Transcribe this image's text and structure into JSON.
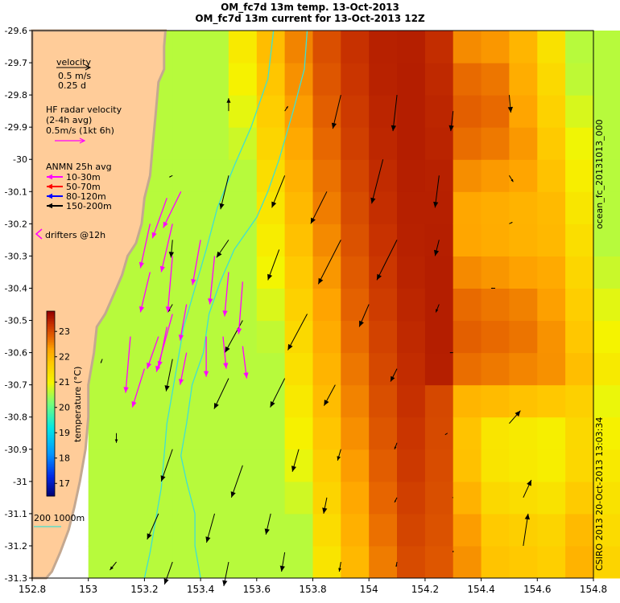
{
  "title_line1": "OM_fc7d 13m temp. 13-Oct-2013",
  "title_line2": "OM_fc7d 13m current for 13-Oct-2013 12Z",
  "right_label_top": "ocean_fc_20131013_000",
  "right_label_bottom": "CSIRO 2013  20-Oct-2013 13:03:34",
  "legend": {
    "velocity_label": "velocity",
    "velocity_scale": "0.5 m/s",
    "velocity_time": "0.25 d",
    "hf_title": "HF radar velocity",
    "hf_avg": "(2-4h avg)",
    "hf_scale": "0.5m/s (1kt 6h)",
    "anmn_title": "ANMN 25h avg",
    "anmn_items": [
      {
        "label": "10-30m",
        "color": "#ff00ff"
      },
      {
        "label": "50-70m",
        "color": "#ff0000"
      },
      {
        "label": "80-120m",
        "color": "#0000ff"
      },
      {
        "label": "150-200m",
        "color": "#000000"
      }
    ],
    "drifters_label": "drifters @12h",
    "bathy_label": "200  1000m"
  },
  "colorbar": {
    "label": "temperature (°C)",
    "ticks": [
      "23",
      "22",
      "21",
      "20",
      "19",
      "18",
      "17"
    ],
    "tick_values": [
      23,
      22,
      21,
      20,
      19,
      18,
      17
    ],
    "vmin": 16.5,
    "vmax": 23.8
  },
  "axes": {
    "x_ticks": [
      "152.8",
      "153",
      "153.2",
      "153.4",
      "153.6",
      "153.8",
      "154",
      "154.2",
      "154.4",
      "154.6",
      "154.8"
    ],
    "x_values": [
      152.8,
      153.0,
      153.2,
      153.4,
      153.6,
      153.8,
      154.0,
      154.2,
      154.4,
      154.6,
      154.8
    ],
    "y_ticks": [
      "-29.6",
      "-29.7",
      "-29.8",
      "-29.9",
      "-30",
      "-30.1",
      "-30.2",
      "-30.3",
      "-30.4",
      "-30.5",
      "-30.6",
      "-30.7",
      "-30.8",
      "-30.9",
      "-31",
      "-31.1",
      "-31.2",
      "-31.3"
    ],
    "y_values": [
      -29.6,
      -29.7,
      -29.8,
      -29.9,
      -30.0,
      -30.1,
      -30.2,
      -30.3,
      -30.4,
      -30.5,
      -30.6,
      -30.7,
      -30.8,
      -30.9,
      -31.0,
      -31.1,
      -31.2,
      -31.3
    ],
    "lon_range": [
      152.8,
      154.8
    ],
    "lat_range": [
      -31.3,
      -29.6
    ]
  },
  "colors": {
    "land": "#ffcc99",
    "coast_rock": "#c4a890",
    "contour_200m": "#40e0d0",
    "hf_arrows": "#ff00ff",
    "model_arrows": "#000000"
  }
}
